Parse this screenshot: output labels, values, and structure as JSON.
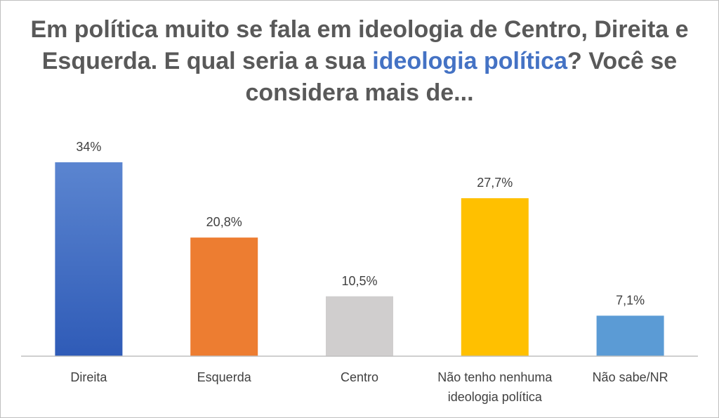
{
  "title": {
    "part1": "Em política muito se fala em ideologia de Centro, Direita e Esquerda. E qual seria a sua ",
    "highlight": "ideologia política",
    "part2": "? Você se considera mais de..."
  },
  "colors": {
    "title_text": "#595959",
    "title_highlight": "#4472c4",
    "axis": "#bfbfbf",
    "label_text": "#404040"
  },
  "chart_data": {
    "type": "bar",
    "categories": [
      [
        "Direita"
      ],
      [
        "Esquerda"
      ],
      [
        "Centro"
      ],
      [
        "Não tenho nenhuma",
        "ideologia política"
      ],
      [
        "Não sabe/NR"
      ]
    ],
    "values": [
      34,
      20.8,
      10.5,
      27.7,
      7.1
    ],
    "data_labels": [
      "34%",
      "20,8%",
      "10,5%",
      "27,7%",
      "7,1%"
    ],
    "bar_colors": [
      "#4472c4",
      "#ed7d31",
      "#d0cece",
      "#ffc000",
      "#5b9bd5"
    ],
    "gradient_first_bar": true,
    "ylim": [
      0,
      34
    ],
    "grid": false,
    "legend": "none"
  }
}
